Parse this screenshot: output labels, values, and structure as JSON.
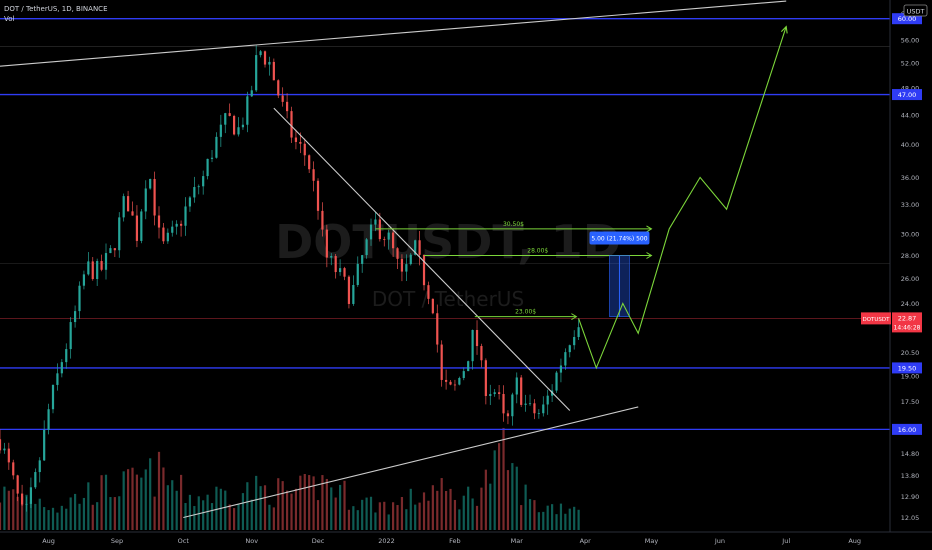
{
  "header": {
    "symbol_line": "DOT / TetherUS, 1D, BINANCE",
    "vol_label": "Vol"
  },
  "watermark": {
    "ticker": "DOTUSDT, 1D",
    "name": "DOT / TetherUS"
  },
  "price_axis": {
    "currency": "USDT",
    "ticks": [
      {
        "label": "61.00",
        "v": 61.0
      },
      {
        "label": "56.00",
        "v": 56.0
      },
      {
        "label": "52.00",
        "v": 52.0
      },
      {
        "label": "48.00",
        "v": 48.0
      },
      {
        "label": "44.00",
        "v": 44.0
      },
      {
        "label": "40.00",
        "v": 40.0
      },
      {
        "label": "36.00",
        "v": 36.0
      },
      {
        "label": "33.00",
        "v": 33.0
      },
      {
        "label": "30.00",
        "v": 30.0
      },
      {
        "label": "28.00",
        "v": 28.0
      },
      {
        "label": "26.00",
        "v": 26.0
      },
      {
        "label": "24.00",
        "v": 24.0
      },
      {
        "label": "20.50",
        "v": 20.5
      },
      {
        "label": "19.00",
        "v": 19.0
      },
      {
        "label": "17.50",
        "v": 17.5
      },
      {
        "label": "16.00",
        "v": 16.0
      },
      {
        "label": "14.80",
        "v": 14.8
      },
      {
        "label": "13.80",
        "v": 13.8
      },
      {
        "label": "12.90",
        "v": 12.9
      },
      {
        "label": "12.05",
        "v": 12.05
      }
    ]
  },
  "time_axis": {
    "ticks": [
      {
        "label": "Aug",
        "d": "2021-08-01"
      },
      {
        "label": "Sep",
        "d": "2021-09-01"
      },
      {
        "label": "Oct",
        "d": "2021-10-01"
      },
      {
        "label": "Nov",
        "d": "2021-11-01"
      },
      {
        "label": "Dec",
        "d": "2021-12-01"
      },
      {
        "label": "2022",
        "d": "2022-01-01"
      },
      {
        "label": "Feb",
        "d": "2022-02-01"
      },
      {
        "label": "Mar",
        "d": "2022-03-01"
      },
      {
        "label": "Apr",
        "d": "2022-04-01"
      },
      {
        "label": "May",
        "d": "2022-05-01"
      },
      {
        "label": "Jun",
        "d": "2022-06-01"
      },
      {
        "label": "Jul",
        "d": "2022-07-01"
      },
      {
        "label": "Aug",
        "d": "2022-08-01"
      }
    ]
  },
  "chart_data": {
    "type": "candlestick",
    "title": "DOT / TetherUS, 1D, BINANCE",
    "x_range": [
      "2021-07-10",
      "2022-08-17"
    ],
    "y_range": [
      11.8,
      62.5
    ],
    "y_scale": "log",
    "grid": false,
    "horizontal_levels": [
      {
        "label": "60.00",
        "value": 60.0,
        "color": "#2f3cf5"
      },
      {
        "label": "47.00",
        "value": 47.0,
        "color": "#2f3cf5"
      },
      {
        "label": "19.50",
        "value": 19.5,
        "color": "#2f3cf5"
      },
      {
        "label": "16.00",
        "value": 16.0,
        "color": "#2f3cf5"
      }
    ],
    "current_price": {
      "symbol": "DOTUSDT",
      "value": "22.87",
      "countdown": "14:46:28",
      "level": 22.87,
      "color": "#f23645"
    },
    "price_path": [
      [
        "2021-07-10",
        15.5
      ],
      [
        "2021-07-16",
        13.5
      ],
      [
        "2021-07-21",
        11.9
      ],
      [
        "2021-07-27",
        14.0
      ],
      [
        "2021-08-01",
        17.0
      ],
      [
        "2021-08-07",
        20.0
      ],
      [
        "2021-08-12",
        22.5
      ],
      [
        "2021-08-18",
        27.0
      ],
      [
        "2021-08-24",
        26.5
      ],
      [
        "2021-08-30",
        28.5
      ],
      [
        "2021-09-05",
        34.0
      ],
      [
        "2021-09-10",
        30.0
      ],
      [
        "2021-09-15",
        37.5
      ],
      [
        "2021-09-21",
        28.5
      ],
      [
        "2021-09-28",
        30.5
      ],
      [
        "2021-10-03",
        33.0
      ],
      [
        "2021-10-10",
        36.0
      ],
      [
        "2021-10-15",
        40.0
      ],
      [
        "2021-10-21",
        43.5
      ],
      [
        "2021-10-26",
        42.0
      ],
      [
        "2021-10-31",
        46.0
      ],
      [
        "2021-11-04",
        54.5
      ],
      [
        "2021-11-09",
        52.0
      ],
      [
        "2021-11-14",
        46.0
      ],
      [
        "2021-11-20",
        40.5
      ],
      [
        "2021-11-26",
        38.5
      ],
      [
        "2021-12-01",
        33.0
      ],
      [
        "2021-12-04",
        28.0
      ],
      [
        "2021-12-10",
        26.5
      ],
      [
        "2021-12-16",
        24.5
      ],
      [
        "2021-12-22",
        28.5
      ],
      [
        "2021-12-27",
        31.0
      ],
      [
        "2022-01-02",
        29.5
      ],
      [
        "2022-01-08",
        26.0
      ],
      [
        "2022-01-14",
        28.5
      ],
      [
        "2022-01-18",
        26.0
      ],
      [
        "2022-01-22",
        24.0
      ],
      [
        "2022-01-26",
        18.5
      ],
      [
        "2022-01-31",
        18.0
      ],
      [
        "2022-02-05",
        19.5
      ],
      [
        "2022-02-10",
        22.0
      ],
      [
        "2022-02-14",
        18.5
      ],
      [
        "2022-02-20",
        18.0
      ],
      [
        "2022-02-24",
        16.0
      ],
      [
        "2022-03-01",
        18.5
      ],
      [
        "2022-03-06",
        17.0
      ],
      [
        "2022-03-12",
        16.8
      ],
      [
        "2022-03-16",
        18.0
      ],
      [
        "2022-03-20",
        19.5
      ],
      [
        "2022-03-25",
        21.5
      ],
      [
        "2022-03-29",
        22.87
      ]
    ],
    "volume_path": [
      [
        "2021-07-10",
        0.45
      ],
      [
        "2021-07-25",
        0.4
      ],
      [
        "2021-08-05",
        0.3
      ],
      [
        "2021-08-20",
        0.48
      ],
      [
        "2021-09-05",
        0.55
      ],
      [
        "2021-09-20",
        0.7
      ],
      [
        "2021-10-05",
        0.4
      ],
      [
        "2021-10-20",
        0.45
      ],
      [
        "2021-11-05",
        0.5
      ],
      [
        "2021-11-20",
        0.45
      ],
      [
        "2021-12-05",
        0.6
      ],
      [
        "2021-12-20",
        0.35
      ],
      [
        "2022-01-05",
        0.3
      ],
      [
        "2022-01-22",
        0.5
      ],
      [
        "2022-02-05",
        0.38
      ],
      [
        "2022-02-24",
        0.95
      ],
      [
        "2022-03-10",
        0.28
      ],
      [
        "2022-03-29",
        0.3
      ]
    ],
    "trendlines": [
      {
        "name": "upper-channel",
        "points": [
          [
            "2021-07-10",
            51.5
          ],
          [
            "2022-07-01",
            63.5
          ]
        ],
        "color": "#cccccc"
      },
      {
        "name": "lower-channel",
        "points": [
          [
            "2021-10-01",
            12.05
          ],
          [
            "2022-04-25",
            17.2
          ]
        ],
        "color": "#cccccc"
      },
      {
        "name": "descending-resistance",
        "points": [
          [
            "2021-11-11",
            45.0
          ],
          [
            "2022-03-25",
            17.0
          ]
        ],
        "color": "#cccccc"
      }
    ],
    "targets": [
      {
        "label": "30.50$",
        "level": 30.5,
        "from": "2021-12-27",
        "to": "2022-05-01"
      },
      {
        "label": "28.00$",
        "level": 28.0,
        "from": "2022-01-18",
        "to": "2022-05-01"
      },
      {
        "label": "23.00$",
        "level": 23.0,
        "from": "2022-02-10",
        "to": "2022-03-28"
      }
    ],
    "projection": {
      "color": "#7cd63a",
      "points": [
        [
          "2022-03-29",
          22.87
        ],
        [
          "2022-04-06",
          19.5
        ],
        [
          "2022-04-18",
          24.0
        ],
        [
          "2022-04-25",
          21.8
        ],
        [
          "2022-05-09",
          30.5
        ],
        [
          "2022-05-23",
          36.0
        ],
        [
          "2022-06-04",
          32.5
        ],
        [
          "2022-07-01",
          58.5
        ]
      ]
    },
    "measure_box": {
      "label": "5.00 (21.74%) 500",
      "from": "2022-04-12",
      "to": "2022-04-21",
      "low": 23.0,
      "high": 28.0,
      "color": "#2962ff"
    }
  }
}
